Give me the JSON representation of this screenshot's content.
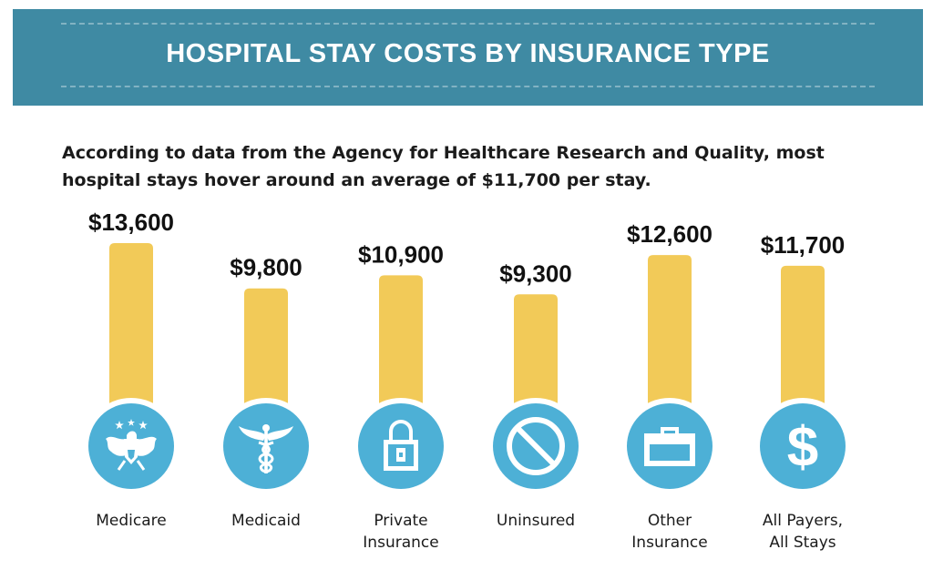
{
  "header": {
    "title": "HOSPITAL STAY COSTS BY INSURANCE TYPE"
  },
  "intro": {
    "line1": "According to data from the Agency for Healthcare Research and Quality, most",
    "line2": "hospital stays hover around an average of $11,700 per stay."
  },
  "colors": {
    "header_bg": "#3f8aa3",
    "bar": "#f2ca58",
    "icon_circle": "#4db0d6",
    "icon_glyph": "#ffffff"
  },
  "chart_data": {
    "type": "bar",
    "title": "HOSPITAL STAY COSTS BY INSURANCE TYPE",
    "xlabel": "",
    "ylabel": "",
    "ylim": [
      0,
      14000
    ],
    "grid": false,
    "categories": [
      {
        "label": [
          "Medicare"
        ],
        "icon": "eagle-icon"
      },
      {
        "label": [
          "Medicaid"
        ],
        "icon": "caduceus-icon"
      },
      {
        "label": [
          "Private",
          "Insurance"
        ],
        "icon": "padlock-icon"
      },
      {
        "label": [
          "Uninsured"
        ],
        "icon": "prohibited-icon"
      },
      {
        "label": [
          "Other",
          "Insurance"
        ],
        "icon": "briefcase-icon"
      },
      {
        "label": [
          "All Payers,",
          "All Stays"
        ],
        "icon": "dollar-icon"
      }
    ],
    "values": [
      13600,
      9800,
      10900,
      9300,
      12600,
      11700
    ],
    "value_labels": [
      "$13,600",
      "$9,800",
      "$10,900",
      "$9,300",
      "$12,600",
      "$11,700"
    ]
  }
}
